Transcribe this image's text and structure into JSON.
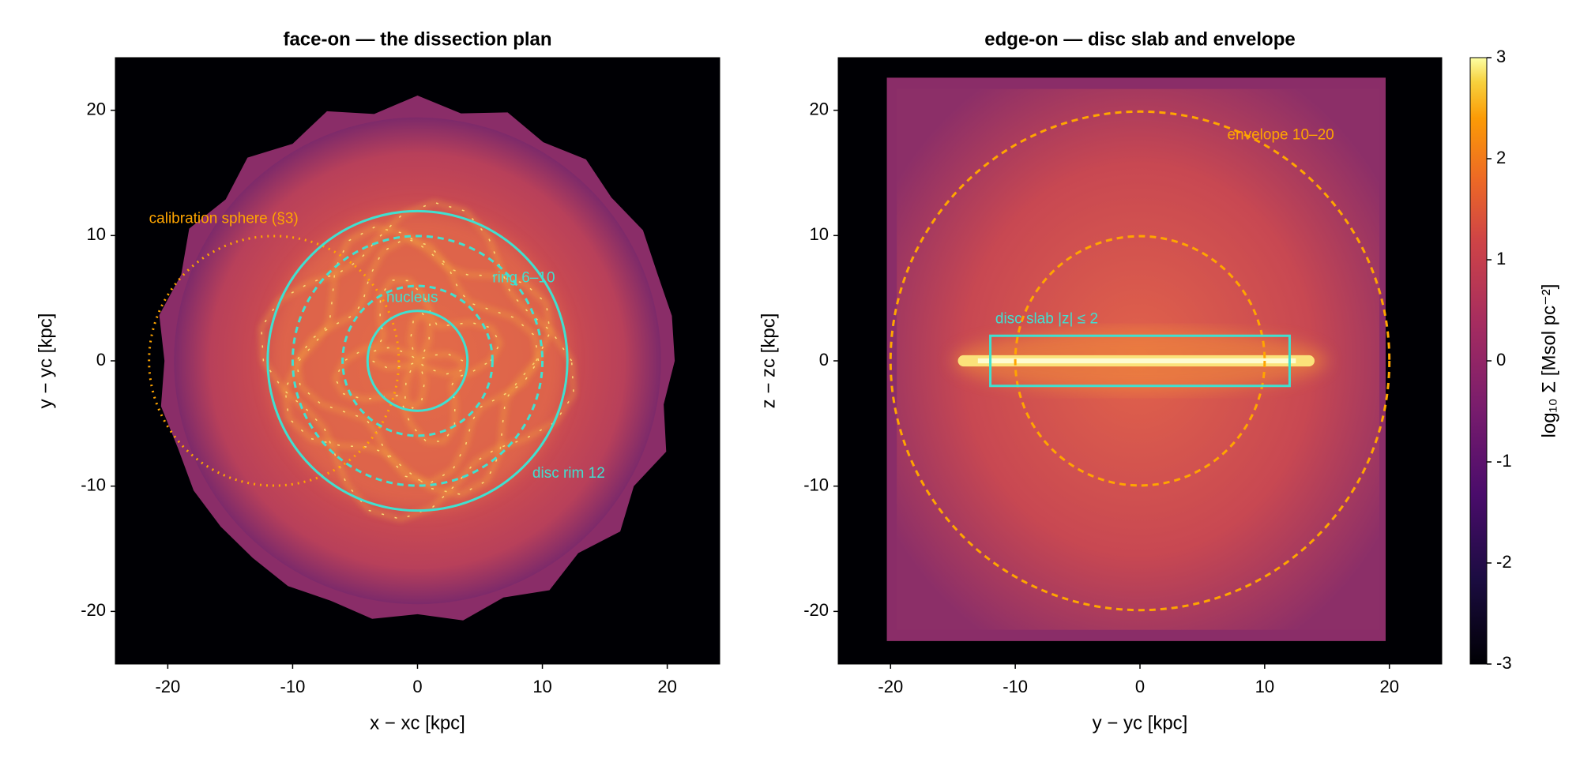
{
  "chart_data": [
    {
      "type": "image",
      "title": "face-on — the dissection plan",
      "xlabel": "x − xc [kpc]",
      "ylabel": "y − yc [kpc]",
      "xlim": [
        -24.2,
        24.2
      ],
      "ylim": [
        -24.2,
        24.2
      ],
      "xticks": [
        -20,
        -10,
        0,
        10,
        20
      ],
      "yticks": [
        -20,
        -10,
        0,
        10,
        20
      ],
      "shapes": [
        {
          "kind": "circle",
          "cx": -11.5,
          "cy": 0,
          "r": 10,
          "color": "#ffa500",
          "style": "dotted"
        },
        {
          "kind": "circle",
          "cx": 0,
          "cy": 0,
          "r": 4,
          "color": "#40e0d0",
          "style": "solid"
        },
        {
          "kind": "circle",
          "cx": 0,
          "cy": 0,
          "r": 6,
          "color": "#40e0d0",
          "style": "dashed"
        },
        {
          "kind": "circle",
          "cx": 0,
          "cy": 0,
          "r": 10,
          "color": "#40e0d0",
          "style": "dashed"
        },
        {
          "kind": "circle",
          "cx": 0,
          "cy": 0,
          "r": 12,
          "color": "#40e0d0",
          "style": "solid"
        }
      ],
      "annotations": [
        {
          "text": "calibration sphere (§3)",
          "color": "#ffa500"
        },
        {
          "text": "ring 6–10",
          "color": "#40e0d0"
        },
        {
          "text": "nucleus",
          "color": "#40e0d0"
        },
        {
          "text": "disc rim 12",
          "color": "#40e0d0"
        }
      ]
    },
    {
      "type": "image",
      "title": "edge-on — disc slab and envelope",
      "xlabel": "y − yc [kpc]",
      "ylabel": "z − zc [kpc]",
      "xlim": [
        -24.2,
        24.2
      ],
      "ylim": [
        -24.2,
        24.2
      ],
      "xticks": [
        -20,
        -10,
        0,
        10,
        20
      ],
      "yticks": [
        -20,
        -10,
        0,
        10,
        20
      ],
      "shapes": [
        {
          "kind": "circle",
          "cx": 0,
          "cy": 0,
          "r": 10,
          "color": "#ffa500",
          "style": "dashed"
        },
        {
          "kind": "circle",
          "cx": 0,
          "cy": 0,
          "r": 20,
          "color": "#ffa500",
          "style": "dashed"
        },
        {
          "kind": "rect",
          "x": [
            -12,
            12
          ],
          "y": [
            -2,
            2
          ],
          "color": "#40e0d0",
          "style": "solid"
        }
      ],
      "annotations": [
        {
          "text": "envelope 10–20",
          "color": "#ffa500"
        },
        {
          "text": "disc slab |z| ≤ 2",
          "color": "#40e0d0"
        }
      ],
      "colorbar": {
        "label": "log₁₀ Σ  [Msol pc⁻²]",
        "clim": [
          -3,
          3
        ],
        "ticks": [
          -3,
          -2,
          -1,
          0,
          1,
          2,
          3
        ]
      }
    }
  ]
}
